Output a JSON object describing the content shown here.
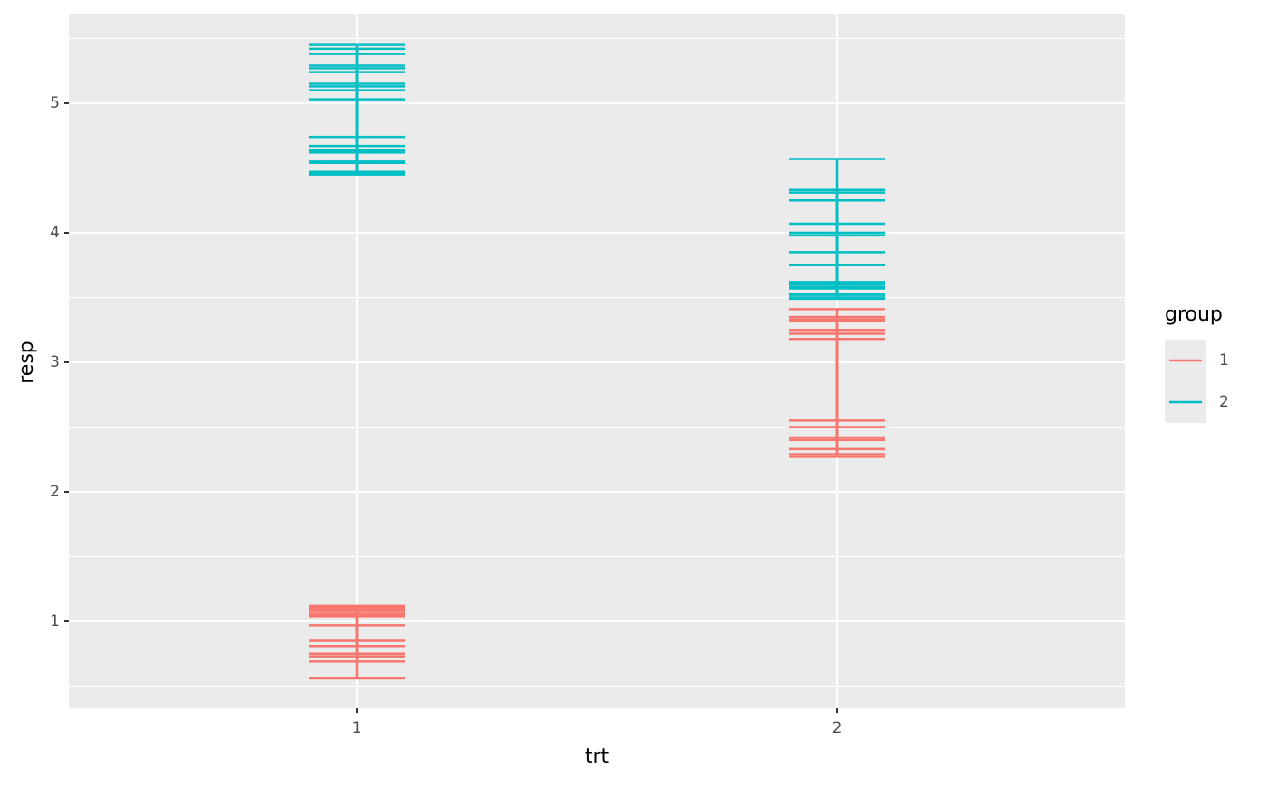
{
  "chart_data": {
    "type": "errorbar",
    "x_label": "trt",
    "y_label": "resp",
    "categories": [
      "1",
      "2"
    ],
    "ylim": [
      0.329,
      5.692
    ],
    "yticks": [
      1,
      2,
      3,
      4,
      5
    ],
    "y_minor_grid": [
      0.5,
      1.5,
      2.5,
      3.5,
      4.5,
      5.5
    ],
    "grid": true,
    "legend_title": "group",
    "series": [
      {
        "name": "1",
        "color": "#f8766d",
        "x": [
          "1",
          "1",
          "1",
          "1",
          "1",
          "1",
          "1",
          "2",
          "2",
          "2",
          "2",
          "2",
          "2",
          "2"
        ],
        "lower": [
          0.56,
          0.69,
          0.73,
          0.75,
          0.81,
          0.85,
          0.97,
          2.27,
          2.29,
          2.33,
          2.4,
          2.42,
          2.5,
          2.55
        ],
        "upper": [
          1.04,
          1.06,
          1.08,
          1.1,
          1.12,
          1.05,
          1.11,
          3.18,
          3.22,
          3.25,
          3.32,
          3.35,
          3.41,
          3.33
        ]
      },
      {
        "name": "2",
        "color": "#00bfc4",
        "x": [
          "1",
          "1",
          "1",
          "1",
          "1",
          "1",
          "1",
          "1",
          "1",
          "1",
          "2",
          "2",
          "2",
          "2",
          "2",
          "2",
          "2",
          "2",
          "2"
        ],
        "lower": [
          4.45,
          4.47,
          4.55,
          4.62,
          4.64,
          4.67,
          4.74,
          4.46,
          4.63,
          4.54,
          3.49,
          3.53,
          3.57,
          3.6,
          3.62,
          3.5,
          3.61,
          3.58,
          3.52
        ],
        "upper": [
          5.03,
          5.1,
          5.13,
          5.15,
          5.24,
          5.27,
          5.29,
          5.38,
          5.42,
          5.45,
          3.75,
          3.85,
          3.98,
          4.0,
          4.07,
          4.25,
          4.31,
          4.33,
          4.57
        ]
      }
    ]
  }
}
